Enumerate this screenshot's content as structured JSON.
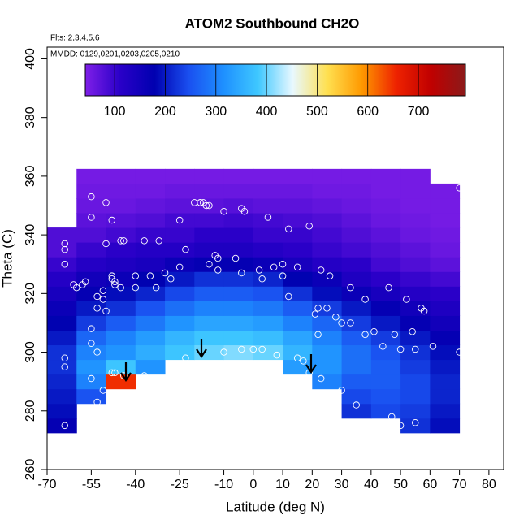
{
  "chart_data": {
    "type": "heatmap",
    "title": "ATOM2 Southbound CH2O",
    "annotations": [
      "Flts: 2,3,4,5,6",
      "MMDD: 0129,0201,0203,0205,0210"
    ],
    "x_label": "Latitude (deg N)",
    "y_label": "Theta (C)",
    "xlim": [
      -70,
      85
    ],
    "xticks": [
      -70,
      -55,
      -40,
      -25,
      -10,
      0,
      10,
      20,
      30,
      40,
      50,
      60,
      70,
      80
    ],
    "ylim": [
      260,
      404
    ],
    "yticks": [
      260,
      280,
      300,
      320,
      340,
      360,
      380,
      400
    ],
    "clim": [
      42,
      793
    ],
    "cticks": [
      100,
      200,
      300,
      400,
      500,
      600,
      700
    ],
    "colors": [
      "#7f1fe8",
      "#2a00c8",
      "#0000b0",
      "#1a50f0",
      "#1e90ff",
      "#3fc8ff",
      "#e8f8ff",
      "#ffe050",
      "#ff9900",
      "#ee2200",
      "#c00000",
      "#8b1a1a"
    ],
    "x": [
      -65,
      -55,
      -45,
      -35,
      -25,
      -15,
      -5,
      5,
      15,
      25,
      35,
      45,
      55,
      65
    ],
    "y": [
      275,
      280,
      285,
      290,
      295,
      300,
      305,
      310,
      315,
      320,
      325,
      330,
      335,
      340,
      345,
      350,
      355,
      360
    ],
    "z": [
      [
        170,
        null,
        null,
        null,
        null,
        null,
        null,
        null,
        null,
        null,
        null,
        null,
        220,
        190
      ],
      [
        190,
        null,
        null,
        null,
        null,
        null,
        null,
        null,
        null,
        null,
        220,
        240,
        230,
        200
      ],
      [
        200,
        250,
        null,
        null,
        null,
        null,
        null,
        null,
        null,
        null,
        240,
        250,
        240,
        210
      ],
      [
        210,
        300,
        650,
        null,
        null,
        null,
        null,
        null,
        null,
        300,
        260,
        260,
        240,
        210
      ],
      [
        220,
        320,
        380,
        320,
        null,
        null,
        null,
        null,
        330,
        320,
        280,
        260,
        230,
        200
      ],
      [
        220,
        300,
        320,
        350,
        380,
        400,
        410,
        400,
        360,
        320,
        280,
        250,
        220,
        190
      ],
      [
        200,
        270,
        300,
        330,
        360,
        380,
        380,
        370,
        340,
        300,
        260,
        230,
        200,
        170
      ],
      [
        180,
        230,
        260,
        290,
        320,
        340,
        340,
        330,
        300,
        270,
        230,
        200,
        170,
        150
      ],
      [
        160,
        200,
        220,
        250,
        280,
        300,
        300,
        290,
        260,
        230,
        200,
        170,
        150,
        130
      ],
      [
        140,
        170,
        190,
        210,
        240,
        260,
        260,
        250,
        220,
        190,
        160,
        140,
        120,
        110
      ],
      [
        120,
        150,
        160,
        180,
        200,
        220,
        220,
        210,
        180,
        160,
        130,
        110,
        100,
        90
      ],
      [
        100,
        120,
        130,
        140,
        160,
        170,
        170,
        160,
        140,
        120,
        110,
        90,
        80,
        70
      ],
      [
        80,
        100,
        110,
        120,
        120,
        130,
        130,
        120,
        110,
        100,
        90,
        80,
        70,
        60
      ],
      [
        80,
        80,
        90,
        100,
        100,
        110,
        110,
        100,
        100,
        90,
        80,
        70,
        60,
        55
      ],
      [
        null,
        70,
        75,
        80,
        90,
        90,
        95,
        90,
        85,
        80,
        70,
        60,
        55,
        50
      ],
      [
        null,
        60,
        60,
        65,
        70,
        70,
        75,
        70,
        70,
        65,
        60,
        55,
        50,
        50
      ],
      [
        null,
        55,
        55,
        55,
        60,
        60,
        60,
        60,
        60,
        55,
        55,
        50,
        50,
        50
      ],
      [
        null,
        50,
        50,
        50,
        50,
        50,
        50,
        50,
        50,
        50,
        50,
        50,
        50,
        null
      ]
    ],
    "points": {
      "color": "#ffffff",
      "x": [
        -64,
        -64,
        -64,
        -64,
        -64,
        -64,
        -61,
        -60,
        -58,
        -57,
        -55,
        -55,
        -55,
        -55,
        -55,
        -55,
        -53,
        -53,
        -53,
        -53,
        -51,
        -51,
        -51,
        -50,
        -50,
        -50,
        -48,
        -48,
        -48,
        -48,
        -47,
        -47,
        -47,
        -45,
        -45,
        -44,
        -44,
        -40,
        -40,
        -37,
        -37,
        -35,
        -33,
        -32,
        -30,
        -28,
        -25,
        -25,
        -23,
        -23,
        -20,
        -18,
        -18,
        -17,
        -16,
        -15,
        -15,
        -13,
        -12,
        -12,
        -10,
        -10,
        -6,
        -4,
        -4,
        -4,
        -3,
        0,
        2,
        3,
        3,
        5,
        7,
        8,
        10,
        10,
        12,
        12,
        15,
        15,
        17,
        19,
        19,
        21,
        22,
        22,
        23,
        23,
        25,
        26,
        28,
        30,
        30,
        33,
        33,
        35,
        38,
        38,
        41,
        44,
        46,
        47,
        48,
        50,
        50,
        52,
        54,
        55,
        55,
        57,
        58,
        61,
        70,
        70
      ],
      "y": [
        275,
        295,
        298,
        330,
        335,
        337,
        323,
        322,
        323,
        324,
        353,
        346,
        308,
        303,
        291,
        281,
        315,
        319,
        300,
        283,
        321,
        318,
        287,
        351,
        337,
        314,
        345,
        326,
        325,
        293,
        323,
        324,
        293,
        338,
        322,
        338,
        292,
        326,
        322,
        338,
        292,
        326,
        322,
        338,
        327,
        325,
        345,
        329,
        335,
        298,
        351,
        351,
        351,
        351,
        350,
        350,
        330,
        333,
        332,
        328,
        348,
        300,
        332,
        349,
        327,
        301,
        348,
        301,
        328,
        325,
        301,
        346,
        329,
        299,
        330,
        326,
        342,
        319,
        329,
        298,
        297,
        343,
        293,
        313,
        315,
        306,
        328,
        291,
        315,
        326,
        312,
        310,
        287,
        322,
        310,
        282,
        318,
        306,
        307,
        302,
        322,
        278,
        306,
        301,
        275,
        318,
        307,
        301,
        276,
        315,
        314,
        302,
        356,
        300
      ]
    }
  }
}
